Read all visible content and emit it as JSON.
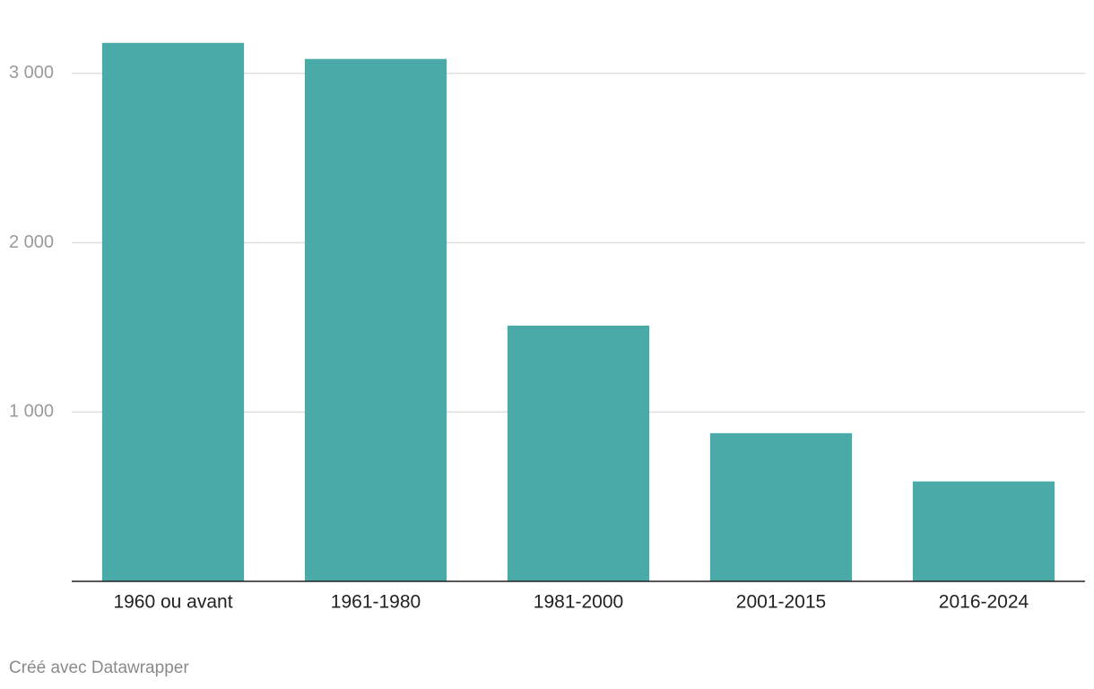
{
  "chart_data": {
    "type": "bar",
    "categories": [
      "1960 ou avant",
      "1961-1980",
      "1981-2000",
      "2001-2015",
      "2016-2024"
    ],
    "values": [
      3180,
      3085,
      1510,
      875,
      590
    ],
    "color": "#49aaa8",
    "ylim": [
      0,
      3200
    ],
    "yticks": [
      {
        "value": 1000,
        "label": "1 000"
      },
      {
        "value": 2000,
        "label": "2 000"
      },
      {
        "value": 3000,
        "label": "3 000"
      }
    ],
    "grid": true,
    "credit": "Créé avec Datawrapper"
  }
}
